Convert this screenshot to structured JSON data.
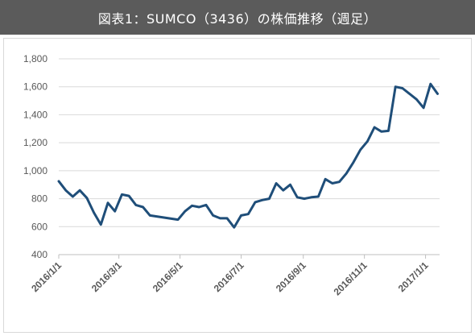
{
  "header": {
    "title": "図表1：SUMCO（3436）の株価推移（週足）"
  },
  "chart_data": {
    "type": "line",
    "title": "図表1：SUMCO（3436）の株価推移（週足）",
    "xlabel": "",
    "ylabel": "",
    "ylim": [
      400,
      1800
    ],
    "yticks": [
      400,
      600,
      800,
      1000,
      1200,
      1400,
      1600,
      1800
    ],
    "ytick_labels": [
      "400",
      "600",
      "800",
      "1,000",
      "1,200",
      "1,400",
      "1,600",
      "1,800"
    ],
    "xticks": [
      "2016-01-01",
      "2016-03-01",
      "2016-05-01",
      "2016-07-01",
      "2016-09-01",
      "2016-11-01",
      "2017-01-01"
    ],
    "xtick_labels": [
      "2016/1/1",
      "2016/3/1",
      "2016/5/1",
      "2016/7/1",
      "2016/9/1",
      "2016/11/1",
      "2017/1/1"
    ],
    "grid": true,
    "legend": "none",
    "color": "#1f4e79",
    "series": [
      {
        "x": [
          "2016-01-01",
          "2016-01-08",
          "2016-01-15",
          "2016-01-22",
          "2016-01-29",
          "2016-02-05",
          "2016-02-12",
          "2016-02-19",
          "2016-02-26",
          "2016-03-04",
          "2016-03-11",
          "2016-03-18",
          "2016-03-25",
          "2016-04-01",
          "2016-04-29",
          "2016-05-06",
          "2016-05-13",
          "2016-05-20",
          "2016-05-27",
          "2016-06-03",
          "2016-06-10",
          "2016-06-17",
          "2016-06-24",
          "2016-07-01",
          "2016-07-08",
          "2016-07-15",
          "2016-07-22",
          "2016-07-29",
          "2016-08-05",
          "2016-08-12",
          "2016-08-19",
          "2016-08-26",
          "2016-09-02",
          "2016-09-09",
          "2016-09-16",
          "2016-09-23",
          "2016-09-30",
          "2016-10-07",
          "2016-10-14",
          "2016-10-21",
          "2016-10-28",
          "2016-11-04",
          "2016-11-11",
          "2016-11-18",
          "2016-11-25",
          "2016-12-02",
          "2016-12-09",
          "2016-12-16",
          "2016-12-23",
          "2016-12-30",
          "2017-01-06",
          "2017-01-13"
        ],
        "values": [
          925,
          860,
          815,
          860,
          805,
          700,
          615,
          770,
          710,
          830,
          820,
          755,
          740,
          680,
          650,
          710,
          750,
          740,
          755,
          680,
          660,
          660,
          595,
          680,
          690,
          775,
          790,
          800,
          910,
          860,
          900,
          810,
          800,
          810,
          815,
          940,
          910,
          920,
          980,
          1060,
          1150,
          1210,
          1310,
          1280,
          1285,
          1600,
          1590,
          1550,
          1510,
          1450,
          1620,
          1550
        ]
      }
    ]
  }
}
